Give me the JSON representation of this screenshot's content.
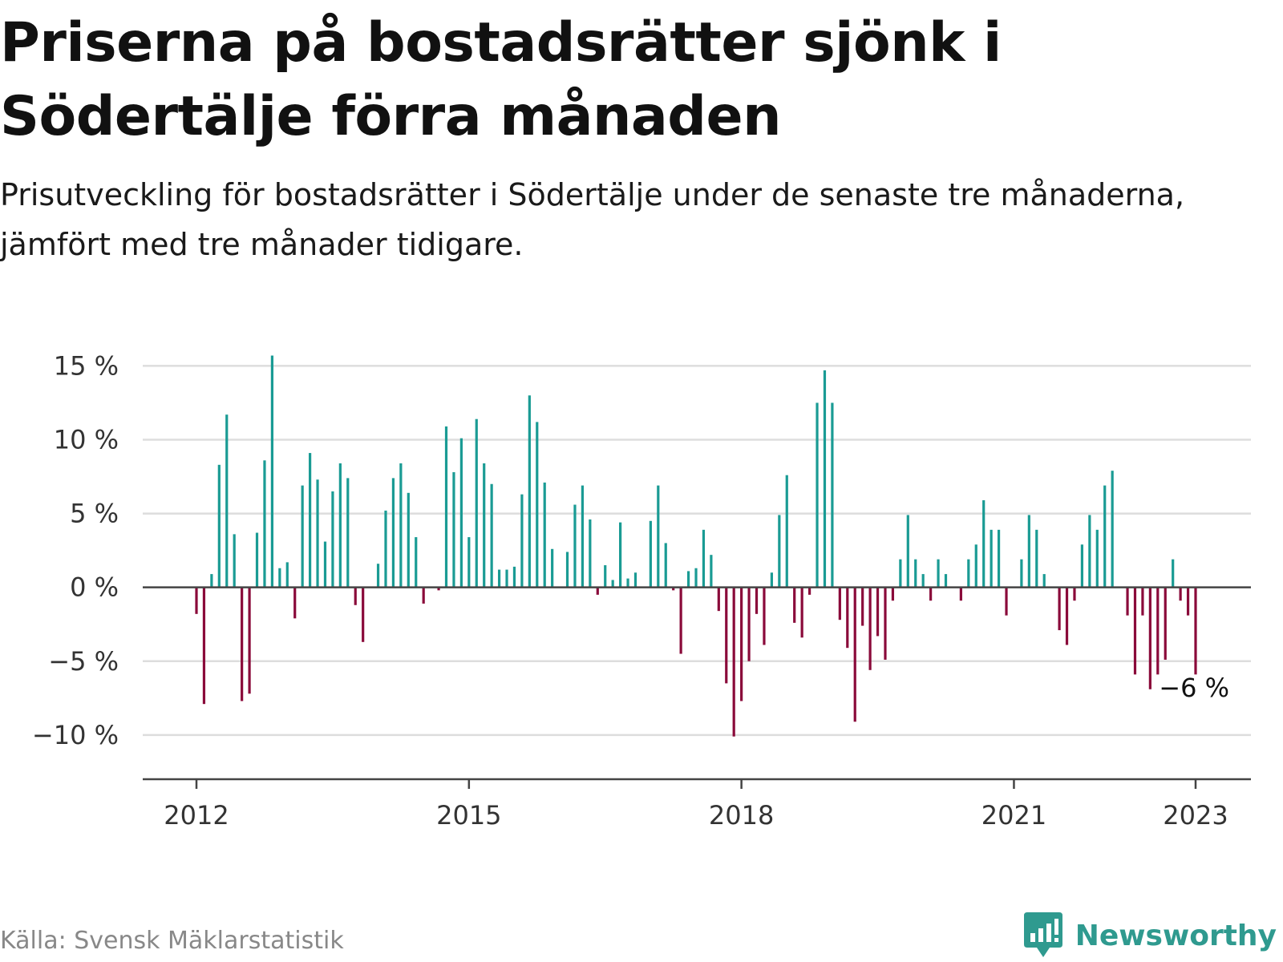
{
  "header": {
    "title": "Priserna på bostadsrätter sjönk i Södertälje förra månaden",
    "subtitle": "Prisutveckling för bostadsrätter i Södertälje under de senaste tre månaderna, jämfört med tre månader tidigare."
  },
  "footer": {
    "source": "Källa: Svensk Mäklarstatistik",
    "brand": "Newsworthy"
  },
  "colors": {
    "positive": "#1a9b94",
    "negative": "#8a0a3a",
    "grid": "#dddddd",
    "axis": "#444444",
    "brand": "#2f9a8f"
  },
  "chart_data": {
    "type": "bar",
    "unit": "%",
    "x_start": "2012-01",
    "x_end": "2023-01",
    "y_ticks": [
      {
        "value": 15,
        "label": "15 %"
      },
      {
        "value": 10,
        "label": "10 %"
      },
      {
        "value": 5,
        "label": "5 %"
      },
      {
        "value": 0,
        "label": "0 %"
      },
      {
        "value": -5,
        "label": "−5 %"
      },
      {
        "value": -10,
        "label": "−10 %"
      }
    ],
    "x_ticks": [
      {
        "date": "2012-01",
        "label": "2012"
      },
      {
        "date": "2015-01",
        "label": "2015"
      },
      {
        "date": "2018-01",
        "label": "2018"
      },
      {
        "date": "2021-01",
        "label": "2021"
      },
      {
        "date": "2023-01",
        "label": "2023"
      }
    ],
    "ylim": [
      -11.8,
      16
    ],
    "grid": true,
    "annotation": {
      "date": "2023-01",
      "label": "−6 %"
    },
    "points": [
      {
        "date": "2012-01",
        "value": -1.8
      },
      {
        "date": "2012-02",
        "value": -7.9
      },
      {
        "date": "2012-03",
        "value": 0.9
      },
      {
        "date": "2012-04",
        "value": 8.3
      },
      {
        "date": "2012-05",
        "value": 11.7
      },
      {
        "date": "2012-06",
        "value": 3.6
      },
      {
        "date": "2012-07",
        "value": -7.7
      },
      {
        "date": "2012-08",
        "value": -7.2
      },
      {
        "date": "2012-09",
        "value": 3.7
      },
      {
        "date": "2012-10",
        "value": 8.6
      },
      {
        "date": "2012-11",
        "value": 15.7
      },
      {
        "date": "2012-12",
        "value": 1.3
      },
      {
        "date": "2013-01",
        "value": 1.7
      },
      {
        "date": "2013-02",
        "value": -2.1
      },
      {
        "date": "2013-03",
        "value": 6.9
      },
      {
        "date": "2013-04",
        "value": 9.1
      },
      {
        "date": "2013-05",
        "value": 7.3
      },
      {
        "date": "2013-06",
        "value": 3.1
      },
      {
        "date": "2013-07",
        "value": 6.5
      },
      {
        "date": "2013-08",
        "value": 8.4
      },
      {
        "date": "2013-09",
        "value": 7.4
      },
      {
        "date": "2013-10",
        "value": -1.2
      },
      {
        "date": "2013-11",
        "value": -3.7
      },
      {
        "date": "2014-01",
        "value": 1.6
      },
      {
        "date": "2014-02",
        "value": 5.2
      },
      {
        "date": "2014-03",
        "value": 7.4
      },
      {
        "date": "2014-04",
        "value": 8.4
      },
      {
        "date": "2014-05",
        "value": 6.4
      },
      {
        "date": "2014-06",
        "value": 3.4
      },
      {
        "date": "2014-07",
        "value": -1.1
      },
      {
        "date": "2014-09",
        "value": -0.2
      },
      {
        "date": "2014-10",
        "value": 10.9
      },
      {
        "date": "2014-11",
        "value": 7.8
      },
      {
        "date": "2014-12",
        "value": 10.1
      },
      {
        "date": "2015-01",
        "value": 3.4
      },
      {
        "date": "2015-02",
        "value": 11.4
      },
      {
        "date": "2015-03",
        "value": 8.4
      },
      {
        "date": "2015-04",
        "value": 7.0
      },
      {
        "date": "2015-05",
        "value": 1.2
      },
      {
        "date": "2015-06",
        "value": 1.2
      },
      {
        "date": "2015-07",
        "value": 1.4
      },
      {
        "date": "2015-08",
        "value": 6.3
      },
      {
        "date": "2015-09",
        "value": 13.0
      },
      {
        "date": "2015-10",
        "value": 11.2
      },
      {
        "date": "2015-11",
        "value": 7.1
      },
      {
        "date": "2015-12",
        "value": 2.6
      },
      {
        "date": "2016-02",
        "value": 2.4
      },
      {
        "date": "2016-03",
        "value": 5.6
      },
      {
        "date": "2016-04",
        "value": 6.9
      },
      {
        "date": "2016-05",
        "value": 4.6
      },
      {
        "date": "2016-06",
        "value": -0.5
      },
      {
        "date": "2016-07",
        "value": 1.5
      },
      {
        "date": "2016-08",
        "value": 0.5
      },
      {
        "date": "2016-09",
        "value": 4.4
      },
      {
        "date": "2016-10",
        "value": 0.6
      },
      {
        "date": "2016-11",
        "value": 1.0
      },
      {
        "date": "2017-01",
        "value": 4.5
      },
      {
        "date": "2017-02",
        "value": 6.9
      },
      {
        "date": "2017-03",
        "value": 3.0
      },
      {
        "date": "2017-04",
        "value": -0.2
      },
      {
        "date": "2017-05",
        "value": -4.5
      },
      {
        "date": "2017-06",
        "value": 1.1
      },
      {
        "date": "2017-07",
        "value": 1.3
      },
      {
        "date": "2017-08",
        "value": 3.9
      },
      {
        "date": "2017-09",
        "value": 2.2
      },
      {
        "date": "2017-10",
        "value": -1.6
      },
      {
        "date": "2017-11",
        "value": -6.5
      },
      {
        "date": "2017-12",
        "value": -10.1
      },
      {
        "date": "2018-01",
        "value": -7.7
      },
      {
        "date": "2018-02",
        "value": -5.0
      },
      {
        "date": "2018-03",
        "value": -1.8
      },
      {
        "date": "2018-04",
        "value": -3.9
      },
      {
        "date": "2018-05",
        "value": 1.0
      },
      {
        "date": "2018-06",
        "value": 4.9
      },
      {
        "date": "2018-07",
        "value": 7.6
      },
      {
        "date": "2018-08",
        "value": -2.4
      },
      {
        "date": "2018-09",
        "value": -3.4
      },
      {
        "date": "2018-10",
        "value": -0.5
      },
      {
        "date": "2018-11",
        "value": 12.5
      },
      {
        "date": "2018-12",
        "value": 14.7
      },
      {
        "date": "2019-01",
        "value": 12.5
      },
      {
        "date": "2019-02",
        "value": -2.2
      },
      {
        "date": "2019-03",
        "value": -4.1
      },
      {
        "date": "2019-04",
        "value": -9.1
      },
      {
        "date": "2019-05",
        "value": -2.6
      },
      {
        "date": "2019-06",
        "value": -5.6
      },
      {
        "date": "2019-07",
        "value": -3.3
      },
      {
        "date": "2019-08",
        "value": -4.9
      },
      {
        "date": "2019-09",
        "value": -0.9
      },
      {
        "date": "2019-10",
        "value": 1.9
      },
      {
        "date": "2019-11",
        "value": 4.9
      },
      {
        "date": "2019-12",
        "value": 1.9
      },
      {
        "date": "2020-01",
        "value": 0.9
      },
      {
        "date": "2020-02",
        "value": -0.9
      },
      {
        "date": "2020-03",
        "value": 1.9
      },
      {
        "date": "2020-04",
        "value": 0.9
      },
      {
        "date": "2020-06",
        "value": -0.9
      },
      {
        "date": "2020-07",
        "value": 1.9
      },
      {
        "date": "2020-08",
        "value": 2.9
      },
      {
        "date": "2020-09",
        "value": 5.9
      },
      {
        "date": "2020-10",
        "value": 3.9
      },
      {
        "date": "2020-11",
        "value": 3.9
      },
      {
        "date": "2020-12",
        "value": -1.9
      },
      {
        "date": "2021-02",
        "value": 1.9
      },
      {
        "date": "2021-03",
        "value": 4.9
      },
      {
        "date": "2021-04",
        "value": 3.9
      },
      {
        "date": "2021-05",
        "value": 0.9
      },
      {
        "date": "2021-07",
        "value": -2.9
      },
      {
        "date": "2021-08",
        "value": -3.9
      },
      {
        "date": "2021-09",
        "value": -0.9
      },
      {
        "date": "2021-10",
        "value": 2.9
      },
      {
        "date": "2021-11",
        "value": 4.9
      },
      {
        "date": "2021-12",
        "value": 3.9
      },
      {
        "date": "2022-01",
        "value": 6.9
      },
      {
        "date": "2022-02",
        "value": 7.9
      },
      {
        "date": "2022-04",
        "value": -1.9
      },
      {
        "date": "2022-05",
        "value": -5.9
      },
      {
        "date": "2022-06",
        "value": -1.9
      },
      {
        "date": "2022-07",
        "value": -6.9
      },
      {
        "date": "2022-08",
        "value": -5.9
      },
      {
        "date": "2022-09",
        "value": -4.9
      },
      {
        "date": "2022-10",
        "value": 1.9
      },
      {
        "date": "2022-11",
        "value": -0.9
      },
      {
        "date": "2022-12",
        "value": -1.9
      },
      {
        "date": "2023-01",
        "value": -5.9
      }
    ]
  }
}
